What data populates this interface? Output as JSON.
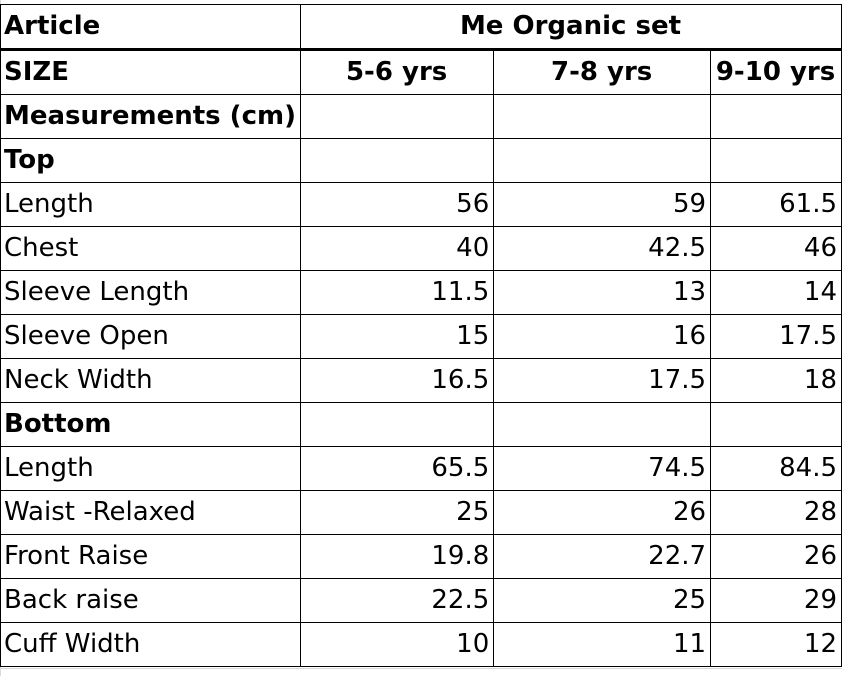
{
  "table": {
    "article_label": "Article",
    "article_value": "Me Organic set",
    "size_label": "SIZE",
    "sizes": [
      "5-6 yrs",
      "7-8 yrs",
      "9-10 yrs"
    ],
    "measurements_label": "Measurements (cm)",
    "sections": [
      {
        "title": "Top",
        "rows": [
          {
            "label": "Length",
            "values": [
              "56",
              "59",
              "61.5"
            ]
          },
          {
            "label": "Chest",
            "values": [
              "40",
              "42.5",
              "46"
            ]
          },
          {
            "label": "Sleeve Length",
            "values": [
              "11.5",
              "13",
              "14"
            ]
          },
          {
            "label": "Sleeve Open",
            "values": [
              "15",
              "16",
              "17.5"
            ]
          },
          {
            "label": "Neck Width",
            "values": [
              "16.5",
              "17.5",
              "18"
            ]
          }
        ]
      },
      {
        "title": "Bottom",
        "rows": [
          {
            "label": "Length",
            "values": [
              "65.5",
              "74.5",
              "84.5"
            ]
          },
          {
            "label": "Waist -Relaxed",
            "values": [
              "25",
              "26",
              "28"
            ]
          },
          {
            "label": "Front Raise",
            "values": [
              "19.8",
              "22.7",
              "26"
            ]
          },
          {
            "label": "Back raise",
            "values": [
              "22.5",
              "25",
              "29"
            ]
          },
          {
            "label": "Cuff Width",
            "values": [
              "10",
              "11",
              "12"
            ]
          }
        ]
      }
    ]
  }
}
